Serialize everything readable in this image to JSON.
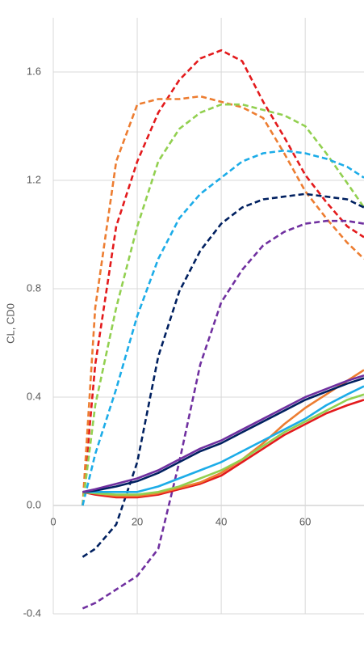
{
  "chart_data": {
    "type": "line",
    "y_label": "CL, CD0",
    "x": [
      7,
      10,
      15,
      20,
      25,
      30,
      35,
      40,
      45,
      50,
      55,
      60,
      65,
      70,
      74
    ],
    "xlim": [
      0,
      74
    ],
    "xticks": [
      0,
      20,
      40,
      60
    ],
    "ylim": [
      -0.4,
      1.8
    ],
    "yticks": [
      {
        "value": -0.4,
        "label": "-0.4"
      },
      {
        "value": 0,
        "label": "0.0"
      },
      0.4,
      0.8,
      1.2,
      1.6
    ],
    "grid": true,
    "series": [
      {
        "color": "#e31a1c",
        "style": "dashed",
        "values": [
          0,
          0.52,
          1.03,
          1.27,
          1.45,
          1.57,
          1.65,
          1.68,
          1.64,
          1.49,
          1.36,
          1.22,
          1.12,
          1.03,
          0.99
        ]
      },
      {
        "color": "#ed7d31",
        "style": "dashed",
        "values": [
          0,
          0.73,
          1.27,
          1.48,
          1.5,
          1.5,
          1.51,
          1.49,
          1.47,
          1.43,
          1.3,
          1.16,
          1.06,
          0.97,
          0.91
        ]
      },
      {
        "color": "#92d050",
        "style": "dashed",
        "values": [
          0,
          0.37,
          0.73,
          1.03,
          1.27,
          1.39,
          1.45,
          1.48,
          1.48,
          1.46,
          1.44,
          1.4,
          1.3,
          1.19,
          1.1
        ]
      },
      {
        "color": "#1cace8",
        "style": "dashed",
        "values": [
          0,
          0.19,
          0.43,
          0.7,
          0.91,
          1.06,
          1.15,
          1.21,
          1.27,
          1.3,
          1.31,
          1.3,
          1.28,
          1.25,
          1.21
        ]
      },
      {
        "color": "#002060",
        "style": "dashed",
        "values": [
          -0.19,
          -0.16,
          -0.07,
          0.16,
          0.55,
          0.79,
          0.94,
          1.04,
          1.1,
          1.13,
          1.14,
          1.15,
          1.14,
          1.13,
          1.1
        ]
      },
      {
        "color": "#7030a0",
        "style": "dashed",
        "values": [
          -0.38,
          -0.36,
          -0.31,
          -0.26,
          -0.16,
          0.16,
          0.52,
          0.75,
          0.87,
          0.96,
          1.01,
          1.04,
          1.05,
          1.05,
          1.04
        ]
      },
      {
        "color": "#e31a1c",
        "style": "solid",
        "values": [
          0.05,
          0.04,
          0.03,
          0.03,
          0.04,
          0.06,
          0.08,
          0.11,
          0.16,
          0.21,
          0.26,
          0.3,
          0.34,
          0.37,
          0.39
        ]
      },
      {
        "color": "#ed7d31",
        "style": "solid",
        "values": [
          0.05,
          0.045,
          0.035,
          0.035,
          0.045,
          0.065,
          0.085,
          0.12,
          0.17,
          0.23,
          0.3,
          0.36,
          0.41,
          0.46,
          0.5
        ]
      },
      {
        "color": "#92d050",
        "style": "solid",
        "values": [
          0.05,
          0.045,
          0.04,
          0.04,
          0.05,
          0.07,
          0.1,
          0.13,
          0.17,
          0.22,
          0.27,
          0.31,
          0.35,
          0.39,
          0.41
        ]
      },
      {
        "color": "#1cace8",
        "style": "solid",
        "values": [
          0.05,
          0.05,
          0.05,
          0.05,
          0.07,
          0.1,
          0.13,
          0.16,
          0.2,
          0.24,
          0.28,
          0.32,
          0.37,
          0.41,
          0.44
        ]
      },
      {
        "color": "#002060",
        "style": "solid",
        "values": [
          0.05,
          0.055,
          0.07,
          0.09,
          0.12,
          0.16,
          0.2,
          0.23,
          0.27,
          0.31,
          0.35,
          0.39,
          0.42,
          0.45,
          0.47
        ]
      },
      {
        "color": "#7030a0",
        "style": "solid",
        "values": [
          0.05,
          0.06,
          0.08,
          0.1,
          0.13,
          0.17,
          0.21,
          0.24,
          0.28,
          0.32,
          0.36,
          0.4,
          0.43,
          0.46,
          0.48
        ]
      }
    ]
  }
}
